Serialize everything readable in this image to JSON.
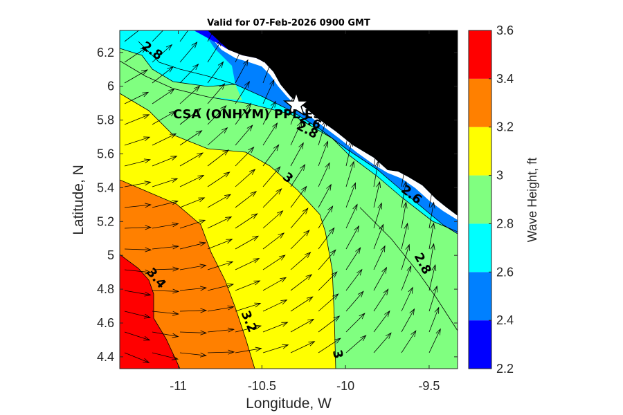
{
  "chart_data": {
    "type": "contour",
    "title": "Valid for 07-Feb-2026 0900 GMT",
    "xlabel": "Longitude, W",
    "ylabel": "Latitude, N",
    "xlim": [
      -11.35,
      -9.33
    ],
    "ylim": [
      4.33,
      6.33
    ],
    "xticks": [
      -11,
      -10.5,
      -10,
      -9.5
    ],
    "xtick_labels": [
      "-11",
      "-10.5",
      "-10",
      "-9.5"
    ],
    "yticks": [
      4.4,
      4.6,
      4.8,
      5,
      5.2,
      5.4,
      5.6,
      5.8,
      6,
      6.2
    ],
    "ytick_labels": [
      "4.4",
      "4.6",
      "4.8",
      "5",
      "5.2",
      "5.4",
      "5.6",
      "5.8",
      "6",
      "6.2"
    ],
    "colorbar": {
      "label": "Wave Height, ft",
      "levels": [
        2.2,
        2.4,
        2.6,
        2.8,
        3.0,
        3.2,
        3.4,
        3.6
      ],
      "tick_labels": [
        "2.2",
        "2.4",
        "2.6",
        "2.8",
        "3",
        "3.2",
        "3.4",
        "3.6"
      ],
      "colors": [
        "#0000ff",
        "#0080ff",
        "#00ffff",
        "#80ff80",
        "#ffff00",
        "#ff8000",
        "#ff0000"
      ]
    },
    "contour_labels": [
      {
        "text": "2.8",
        "lon": -11.17,
        "lat": 6.19,
        "angle": 35
      },
      {
        "text": "2.6",
        "lon": -10.22,
        "lat": 5.77,
        "angle": 25
      },
      {
        "text": "2.8",
        "lon": -10.24,
        "lat": 5.72,
        "angle": 28
      },
      {
        "text": "3",
        "lon": -10.36,
        "lat": 5.44,
        "angle": 40
      },
      {
        "text": "2.6",
        "lon": -9.62,
        "lat": 5.34,
        "angle": 38
      },
      {
        "text": "2.8",
        "lon": -9.56,
        "lat": 4.94,
        "angle": 62
      },
      {
        "text": "3.4",
        "lon": -11.15,
        "lat": 4.85,
        "angle": 50
      },
      {
        "text": "3.2",
        "lon": -10.6,
        "lat": 4.6,
        "angle": 68
      },
      {
        "text": "3",
        "lon": -10.07,
        "lat": 4.41,
        "angle": 78
      }
    ],
    "site": {
      "label": "CSA (ONHYM) PPL ES",
      "lon": -10.28,
      "lat": 5.92,
      "marker": "star"
    },
    "land_color": "#000000"
  }
}
